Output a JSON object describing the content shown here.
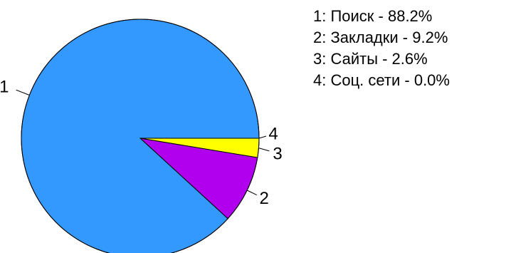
{
  "chart_data": {
    "type": "pie",
    "title": "",
    "slices": [
      {
        "label": "1",
        "name": "Поиск",
        "value": 88.2,
        "display": "88.2%",
        "color": "#3399ff"
      },
      {
        "label": "2",
        "name": "Закладки",
        "value": 9.2,
        "display": "9.2%",
        "color": "#b000ee"
      },
      {
        "label": "3",
        "name": "Сайты",
        "value": 2.6,
        "display": "2.6%",
        "color": "#ffff00"
      },
      {
        "label": "4",
        "name": "Соц. сети",
        "value": 0.0,
        "display": "0.0%",
        "color": "#ffffff"
      }
    ],
    "legend": [
      "1: Поиск - 88.2%",
      "2: Закладки - 9.2%",
      "3: Сайты - 2.6%",
      "4: Соц. сети - 0.0%"
    ],
    "legend_position": "top-right"
  }
}
